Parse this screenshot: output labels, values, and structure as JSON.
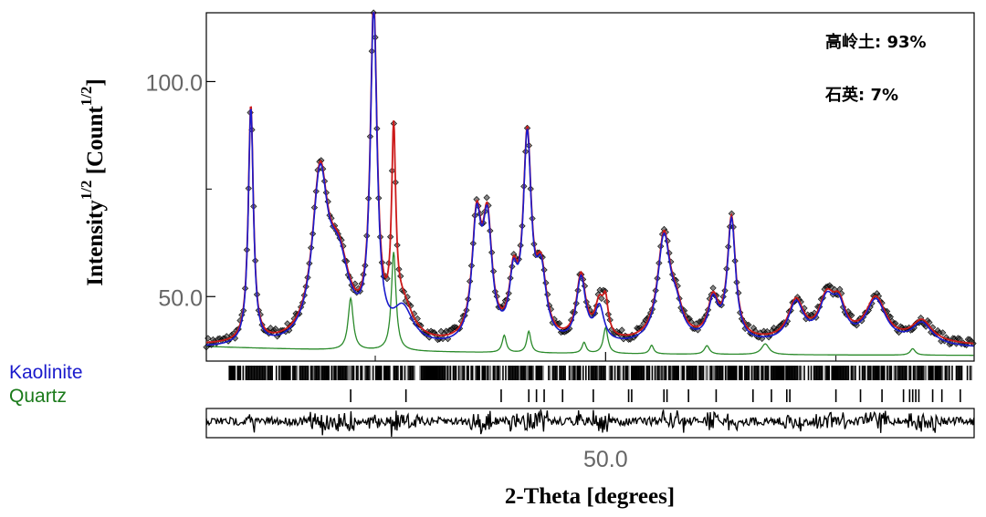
{
  "chart_data": {
    "type": "line",
    "title": "",
    "xlabel": "2-Theta [degrees]",
    "ylabel": "Intensity",
    "ylabel_sup": "1/2",
    "ylabel_unit": " [Count",
    "ylabel_unit_sup": "1/2",
    "ylabel_close": "]",
    "xlim": [
      37.0,
      62.0
    ],
    "ylim": [
      35.0,
      116.0
    ],
    "x_ticks": [
      {
        "value": 50.0,
        "label": "50.0"
      }
    ],
    "x_minor_ticks": [
      42.5,
      57.5
    ],
    "y_ticks": [
      {
        "value": 100.0,
        "label": "100.0"
      },
      {
        "value": 50.0,
        "label": "50.0"
      }
    ],
    "y_minor_ticks": [
      75.0
    ],
    "background": 38.5,
    "peaks": [
      {
        "x": 38.45,
        "h": 55.0,
        "w": 0.1,
        "phase": "kaolinite"
      },
      {
        "x": 40.7,
        "h": 36.0,
        "w": 0.3,
        "phase": "kaolinite"
      },
      {
        "x": 41.3,
        "h": 18.0,
        "w": 0.45,
        "phase": "kaolinite"
      },
      {
        "x": 42.45,
        "h": 76.0,
        "w": 0.13,
        "phase": "kaolinite"
      },
      {
        "x": 43.1,
        "h": 43.0,
        "w": 0.08,
        "phase": "quartz"
      },
      {
        "x": 43.4,
        "h": 8.0,
        "w": 0.4,
        "phase": "kaolinite"
      },
      {
        "x": 45.8,
        "h": 27.0,
        "w": 0.18,
        "phase": "kaolinite"
      },
      {
        "x": 46.15,
        "h": 26.0,
        "w": 0.18,
        "phase": "kaolinite"
      },
      {
        "x": 47.0,
        "h": 13.0,
        "w": 0.16,
        "phase": "kaolinite"
      },
      {
        "x": 47.45,
        "h": 46.0,
        "w": 0.16,
        "phase": "kaolinite"
      },
      {
        "x": 47.9,
        "h": 15.0,
        "w": 0.2,
        "phase": "kaolinite"
      },
      {
        "x": 49.2,
        "h": 15.0,
        "w": 0.18,
        "phase": "kaolinite"
      },
      {
        "x": 49.8,
        "h": 8.0,
        "w": 0.18,
        "phase": "kaolinite"
      },
      {
        "x": 50.0,
        "h": 7.0,
        "w": 0.1,
        "phase": "quartz"
      },
      {
        "x": 51.9,
        "h": 24.0,
        "w": 0.25,
        "phase": "kaolinite"
      },
      {
        "x": 52.3,
        "h": 6.0,
        "w": 0.25,
        "phase": "kaolinite"
      },
      {
        "x": 53.5,
        "h": 9.0,
        "w": 0.2,
        "phase": "kaolinite"
      },
      {
        "x": 54.1,
        "h": 28.0,
        "w": 0.16,
        "phase": "kaolinite"
      },
      {
        "x": 56.2,
        "h": 9.0,
        "w": 0.3,
        "phase": "kaolinite"
      },
      {
        "x": 57.2,
        "h": 9.0,
        "w": 0.3,
        "phase": "kaolinite"
      },
      {
        "x": 57.6,
        "h": 7.0,
        "w": 0.25,
        "phase": "kaolinite"
      },
      {
        "x": 58.8,
        "h": 10.0,
        "w": 0.4,
        "phase": "kaolinite"
      },
      {
        "x": 60.3,
        "h": 5.0,
        "w": 0.4,
        "phase": "kaolinite"
      }
    ],
    "quartz_profile": [
      {
        "x": 41.7,
        "h": 12.0,
        "w": 0.1
      },
      {
        "x": 43.1,
        "h": 23.0,
        "w": 0.09
      },
      {
        "x": 46.7,
        "h": 4.0,
        "w": 0.08
      },
      {
        "x": 47.5,
        "h": 5.0,
        "w": 0.08
      },
      {
        "x": 49.3,
        "h": 2.5,
        "w": 0.08
      },
      {
        "x": 50.0,
        "h": 6.0,
        "w": 0.09
      },
      {
        "x": 51.5,
        "h": 2.0,
        "w": 0.08
      },
      {
        "x": 53.3,
        "h": 2.0,
        "w": 0.1
      },
      {
        "x": 55.2,
        "h": 2.5,
        "w": 0.15
      },
      {
        "x": 60.0,
        "h": 1.5,
        "w": 0.1
      }
    ],
    "quartz_ticks": [
      41.7,
      43.5,
      46.6,
      47.5,
      47.75,
      48.0,
      48.6,
      49.6,
      50.75,
      50.85,
      51.9,
      52.0,
      52.7,
      53.6,
      54.8,
      55.4,
      55.9,
      56.0,
      57.5,
      58.3,
      59.0,
      59.7,
      59.9,
      60.0,
      60.1,
      60.2,
      60.65,
      60.95,
      61.55
    ]
  },
  "legend": [
    {
      "label": "Kaolinite",
      "color": "#1a1acc"
    },
    {
      "label": "Quartz",
      "color": "#1a7a1a"
    }
  ],
  "annotations": [
    {
      "label": "高岭土: 93%"
    },
    {
      "label": "石英: 7%"
    }
  ],
  "colors": {
    "observed": "#000000",
    "calc_kaolinite": "#1a1acc",
    "calc_total": "#cc1a1a",
    "quartz": "#2a8a2a",
    "frame": "#000000"
  }
}
